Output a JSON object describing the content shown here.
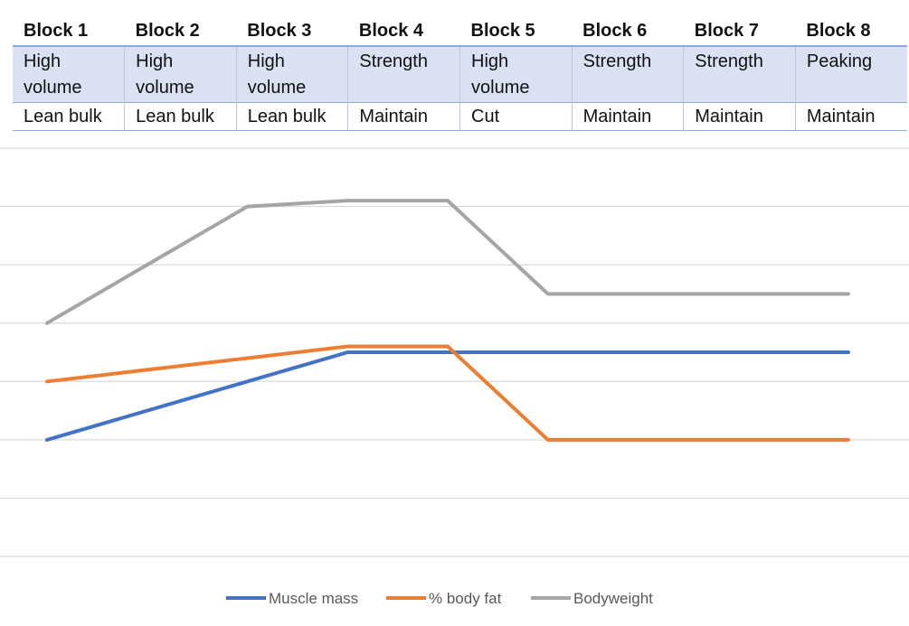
{
  "table": {
    "blocks": [
      "Block 1",
      "Block 2",
      "Block 3",
      "Block 4",
      "Block 5",
      "Block 6",
      "Block 7",
      "Block 8"
    ],
    "focus": [
      "High volume",
      "High volume",
      "High volume",
      "Strength",
      "High volume",
      "Strength",
      "Strength",
      "Peaking"
    ],
    "goal": [
      "Lean bulk",
      "Lean bulk",
      "Lean bulk",
      "Maintain",
      "Cut",
      "Maintain",
      "Maintain",
      "Maintain"
    ]
  },
  "chart_data": {
    "type": "line",
    "title": "",
    "xlabel": "",
    "ylabel": "",
    "ylim": [
      0,
      7
    ],
    "grid": true,
    "legend_position": "bottom",
    "x": [
      1,
      2,
      3,
      4,
      5,
      6,
      7,
      8,
      9
    ],
    "series": [
      {
        "name": "Muscle mass",
        "color": "#4472c4",
        "values": [
          2,
          2.5,
          3,
          3.5,
          3.5,
          3.5,
          3.5,
          3.5,
          3.5
        ]
      },
      {
        "name": "% body fat",
        "color": "#ed7d31",
        "values": [
          3,
          3.2,
          3.4,
          3.6,
          3.6,
          2,
          2,
          2,
          2
        ]
      },
      {
        "name": "Bodyweight",
        "color": "#a5a5a5",
        "values": [
          4,
          5,
          6,
          6.1,
          6.1,
          4.5,
          4.5,
          4.5,
          4.5
        ]
      }
    ]
  }
}
